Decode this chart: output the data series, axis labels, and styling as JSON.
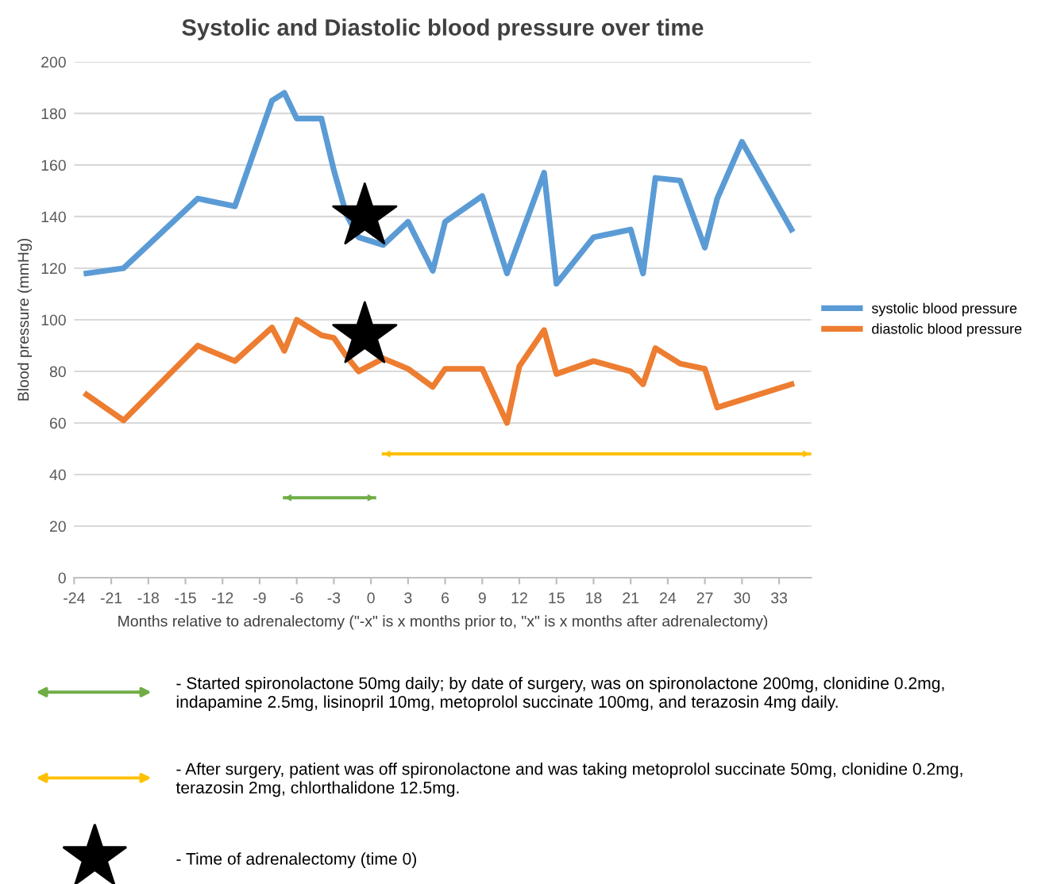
{
  "chart_data": {
    "type": "line",
    "title": "Systolic and Diastolic blood pressure over time",
    "xlabel": "Months relative to adrenalectomy (\"-x\" is x months prior to, \"x\" is x months after adrenalectomy)",
    "ylabel": "Blood pressure (mmHg)",
    "xlim": [
      -24,
      35.6
    ],
    "xticks": [
      -24,
      -21,
      -18,
      -15,
      -12,
      -9,
      -6,
      -3,
      0,
      3,
      6,
      9,
      12,
      15,
      18,
      21,
      24,
      27,
      30,
      33
    ],
    "ylim": [
      0,
      200
    ],
    "yticks": [
      0,
      20,
      40,
      60,
      80,
      100,
      120,
      140,
      160,
      180,
      200
    ],
    "grid": "y",
    "legend": "right",
    "line_style": "solid",
    "marker": "none",
    "series": [
      {
        "name": "systolic blood pressure",
        "color": "#5b9bd5",
        "x": [
          -23,
          -20,
          -14,
          -11,
          -8,
          -7,
          -6,
          -4,
          -3,
          -2,
          -1,
          1,
          3,
          5,
          6,
          9,
          11,
          14,
          15,
          18,
          21,
          22,
          23,
          25,
          27,
          28,
          30,
          34
        ],
        "values": [
          118,
          120,
          147,
          144,
          185,
          188,
          178,
          178,
          158,
          141,
          132,
          129,
          138,
          119,
          138,
          148,
          118,
          157,
          114,
          132,
          135,
          118,
          155,
          154,
          128,
          147,
          169,
          135
        ]
      },
      {
        "name": "diastolic blood pressure",
        "color": "#ed7d31",
        "x": [
          -23,
          -20,
          -14,
          -11,
          -8,
          -7,
          -6,
          -4,
          -3,
          -2,
          -1,
          1,
          3,
          5,
          6,
          9,
          11,
          12,
          14,
          15,
          18,
          21,
          22,
          23,
          25,
          27,
          28,
          30,
          34
        ],
        "values": [
          71,
          61,
          90,
          84,
          97,
          88,
          100,
          94,
          93,
          86,
          80,
          85,
          81,
          74,
          81,
          81,
          60,
          82,
          96,
          79,
          84,
          80,
          75,
          89,
          83,
          81,
          66,
          69,
          75
        ]
      },
      {
        "type": "line",
        "color": "#70ad47",
        "x": [
          -7,
          0.3
        ],
        "values": [
          31,
          31
        ]
      },
      {
        "type": "line",
        "color": "#ffc000",
        "x": [
          1,
          35.5
        ],
        "values": [
          48,
          48
        ]
      },
      {
        "type": "scatter",
        "marker": "star",
        "color": "#000000",
        "x": [
          -0.5,
          -0.5
        ],
        "values": [
          140,
          94
        ]
      }
    ],
    "annotations": [
      "- Started spironolactone 50mg daily; by date of surgery, was on spironolactone 200mg, clonidine 0.2mg,\nindapamine 2.5mg, lisinopril 10mg, metoprolol succinate 100mg, and terazosin 4mg daily.",
      "- After surgery, patient was off spironolactone and was taking metoprolol succinate 50mg, clonidine 0.2mg,\nterazosin 2mg, chlorthalidone 12.5mg.",
      "- Time of adrenalectomy (time 0)"
    ]
  }
}
